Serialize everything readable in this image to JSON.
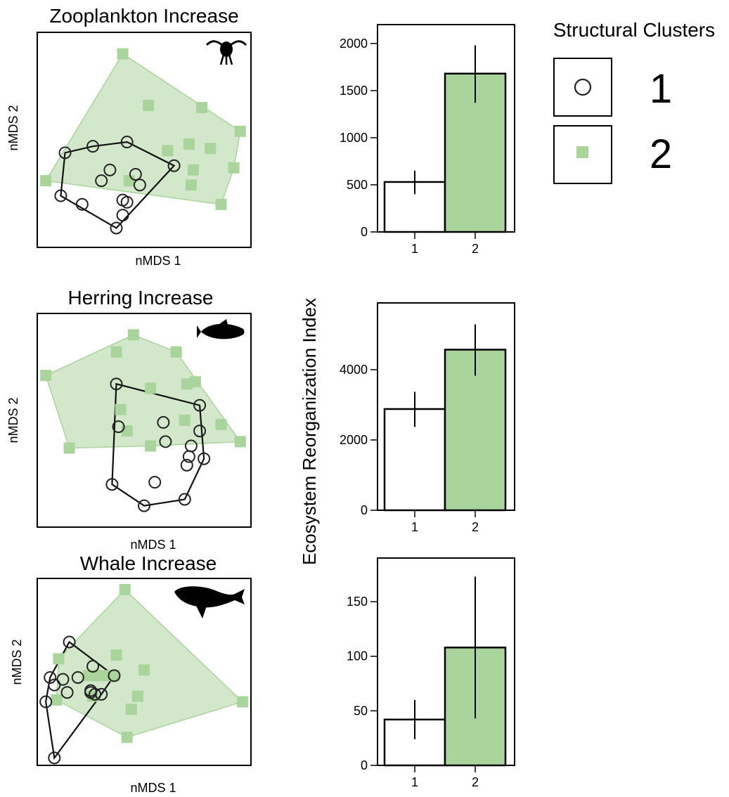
{
  "legend": {
    "title": "Structural Clusters",
    "entries": [
      {
        "label": "1",
        "marker": "open-circle"
      },
      {
        "label": "2",
        "marker": "filled-square"
      }
    ]
  },
  "shared_ylabel": "Ecosystem Reorganization Index",
  "colors": {
    "cluster1_stroke": "#222222",
    "cluster1_hull": "#111111",
    "cluster2_fill": "#a9d49b",
    "cluster2_hull_fill": "#d3e8cb",
    "cluster2_hull_stroke": "#a9d49b",
    "cluster2_hull_line": "#4a6a48",
    "bar1": "#ffffff",
    "bar2": "#a9d49b"
  },
  "chart_data": [
    {
      "type": "scatter",
      "title": "Zooplankton Increase",
      "xlabel": "nMDS 1",
      "ylabel": "nMDS 2",
      "icon": "zooplankton-icon",
      "xlim": [
        0,
        100
      ],
      "ylim": [
        0,
        100
      ],
      "series": [
        {
          "name": "1",
          "points": [
            [
              13,
              44
            ],
            [
              26,
              47
            ],
            [
              42,
              49
            ],
            [
              34,
              36
            ],
            [
              30,
              31
            ],
            [
              46,
              34
            ],
            [
              48,
              29
            ],
            [
              64,
              38
            ],
            [
              11,
              24
            ],
            [
              21,
              20
            ],
            [
              40,
              22
            ],
            [
              42,
              21
            ],
            [
              40,
              15
            ],
            [
              37,
              9
            ]
          ]
        },
        {
          "name": "2",
          "points": [
            [
              40,
              90
            ],
            [
              52,
              66
            ],
            [
              77,
              65
            ],
            [
              95,
              54
            ],
            [
              61,
              45
            ],
            [
              71,
              48
            ],
            [
              81,
              46
            ],
            [
              92,
              37
            ],
            [
              73,
              36
            ],
            [
              72,
              29
            ],
            [
              43,
              31
            ],
            [
              4,
              31
            ],
            [
              86,
              20
            ]
          ]
        }
      ]
    },
    {
      "type": "bar",
      "categories": [
        "1",
        "2"
      ],
      "values": [
        530,
        1680
      ],
      "errors": [
        [
          400,
          650
        ],
        [
          1370,
          1980
        ]
      ],
      "ylim": [
        0,
        2200
      ],
      "yticks": [
        "0",
        "500",
        "1000",
        "1500",
        "2000"
      ]
    },
    {
      "type": "scatter",
      "title": "Herring Increase",
      "xlabel": "nMDS 1",
      "ylabel": "nMDS 2",
      "icon": "herring-icon",
      "xlim": [
        0,
        100
      ],
      "ylim": [
        0,
        100
      ],
      "series": [
        {
          "name": "1",
          "points": [
            [
              37,
              67
            ],
            [
              38,
              47
            ],
            [
              59,
              49
            ],
            [
              60,
              40
            ],
            [
              76,
              57
            ],
            [
              76,
              45
            ],
            [
              72,
              38
            ],
            [
              71,
              33
            ],
            [
              70,
              29
            ],
            [
              78,
              32
            ],
            [
              55,
              21
            ],
            [
              35,
              20
            ],
            [
              50,
              10
            ],
            [
              69,
              13
            ]
          ]
        },
        {
          "name": "2",
          "points": [
            [
              45,
              90
            ],
            [
              37,
              82
            ],
            [
              65,
              82
            ],
            [
              4,
              71
            ],
            [
              53,
              65
            ],
            [
              70,
              67
            ],
            [
              74,
              68
            ],
            [
              39,
              55
            ],
            [
              42,
              45
            ],
            [
              69,
              50
            ],
            [
              86,
              48
            ],
            [
              53,
              38
            ],
            [
              95,
              40
            ],
            [
              15,
              37
            ]
          ]
        }
      ]
    },
    {
      "type": "bar",
      "categories": [
        "1",
        "2"
      ],
      "values": [
        2880,
        4570
      ],
      "errors": [
        [
          2370,
          3370
        ],
        [
          3830,
          5290
        ]
      ],
      "ylim": [
        0,
        5900
      ],
      "yticks": [
        "0",
        "2000",
        "4000"
      ]
    },
    {
      "type": "scatter",
      "title": "Whale Increase",
      "xlabel": "nMDS 1",
      "ylabel": "nMDS 2",
      "icon": "whale-icon",
      "xlim": [
        0,
        100
      ],
      "ylim": [
        0,
        100
      ],
      "series": [
        {
          "name": "1",
          "points": [
            [
              15,
              66
            ],
            [
              26,
              53
            ],
            [
              6,
              47
            ],
            [
              8,
              43
            ],
            [
              12,
              46
            ],
            [
              19,
              47
            ],
            [
              14,
              39
            ],
            [
              25,
              40
            ],
            [
              36,
              48
            ],
            [
              25,
              39
            ],
            [
              27,
              38
            ],
            [
              30,
              38
            ],
            [
              4,
              34
            ],
            [
              8,
              4
            ]
          ]
        },
        {
          "name": "2",
          "points": [
            [
              41,
              94
            ],
            [
              37,
              59
            ],
            [
              50,
              51
            ],
            [
              10,
              57
            ],
            [
              24,
              48
            ],
            [
              28,
              48
            ],
            [
              32,
              48
            ],
            [
              36,
              48
            ],
            [
              47,
              37
            ],
            [
              44,
              30
            ],
            [
              26,
              37
            ],
            [
              9,
              35
            ],
            [
              96,
              34
            ],
            [
              42,
              15
            ]
          ]
        }
      ]
    },
    {
      "type": "bar",
      "categories": [
        "1",
        "2"
      ],
      "values": [
        42,
        108
      ],
      "errors": [
        [
          24,
          60
        ],
        [
          43,
          173
        ]
      ],
      "ylim": [
        0,
        190
      ],
      "yticks": [
        "0",
        "50",
        "100",
        "150"
      ]
    }
  ]
}
